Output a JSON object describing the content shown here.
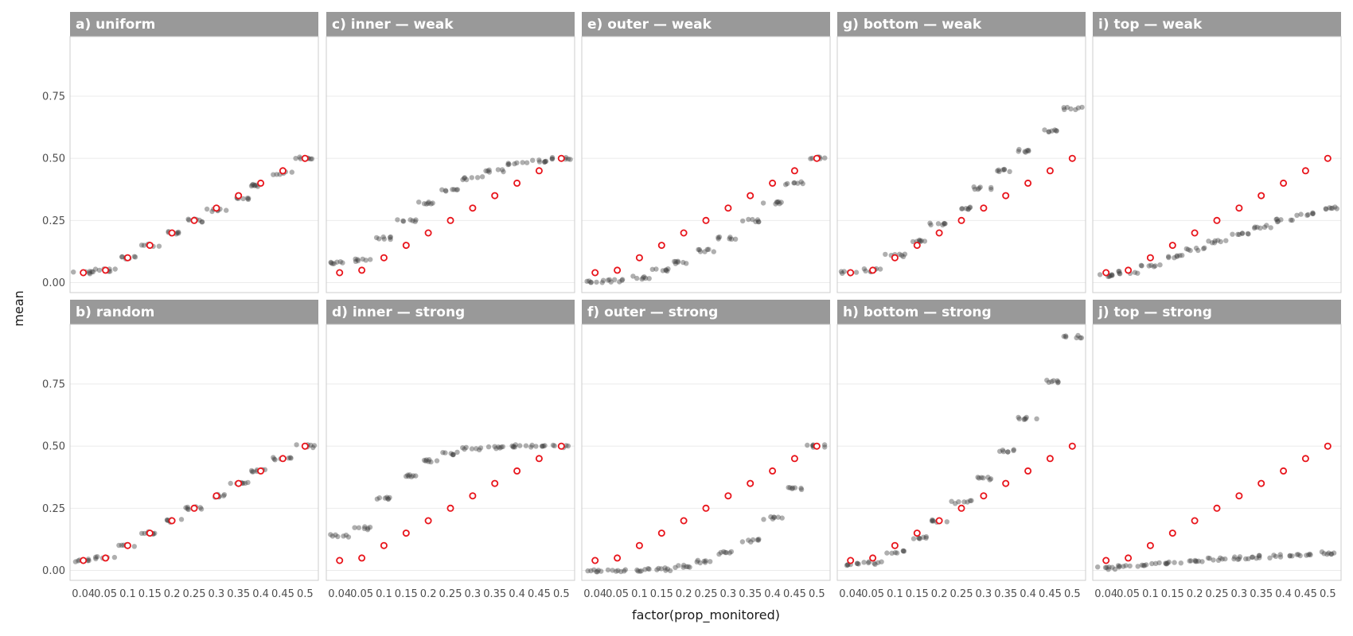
{
  "chart_data": {
    "type": "scatter",
    "xlabel": "factor(prop_monitored)",
    "ylabel": "mean",
    "categories": [
      "0.04",
      "0.05",
      "0.1",
      "0.15",
      "0.2",
      "0.25",
      "0.3",
      "0.35",
      "0.4",
      "0.45",
      "0.5"
    ],
    "expected": [
      0.04,
      0.05,
      0.1,
      0.15,
      0.2,
      0.25,
      0.3,
      0.35,
      0.4,
      0.45,
      0.5
    ],
    "y_ticks": [
      0.0,
      0.25,
      0.5,
      0.75
    ],
    "y_tick_labels": [
      "0.00",
      "0.25",
      "0.50",
      "0.75"
    ],
    "ylim": [
      -0.04,
      0.99
    ],
    "colors": {
      "observed": "#404040",
      "expected": "#e8141b",
      "strip": "#999999",
      "panel_border": "#cccccc",
      "grid": "#ebebeb"
    },
    "panels": [
      {
        "title": "a) uniform",
        "observed": [
          0.04,
          0.05,
          0.1,
          0.15,
          0.2,
          0.25,
          0.29,
          0.34,
          0.39,
          0.44,
          0.5
        ]
      },
      {
        "title": "c) inner — weak",
        "observed": [
          0.08,
          0.09,
          0.18,
          0.25,
          0.32,
          0.37,
          0.42,
          0.45,
          0.48,
          0.49,
          0.5
        ]
      },
      {
        "title": "e) outer — weak",
        "observed": [
          0.005,
          0.008,
          0.02,
          0.05,
          0.08,
          0.13,
          0.18,
          0.25,
          0.32,
          0.4,
          0.5
        ]
      },
      {
        "title": "g) bottom — weak",
        "observed": [
          0.04,
          0.05,
          0.11,
          0.17,
          0.235,
          0.3,
          0.38,
          0.45,
          0.53,
          0.61,
          0.7
        ]
      },
      {
        "title": "i) top — weak",
        "observed": [
          0.03,
          0.04,
          0.07,
          0.105,
          0.135,
          0.165,
          0.195,
          0.225,
          0.25,
          0.275,
          0.3
        ]
      },
      {
        "title": "b) random",
        "observed": [
          0.04,
          0.05,
          0.1,
          0.15,
          0.2,
          0.25,
          0.3,
          0.35,
          0.4,
          0.45,
          0.5
        ]
      },
      {
        "title": "d) inner — strong",
        "observed": [
          0.14,
          0.17,
          0.29,
          0.38,
          0.44,
          0.47,
          0.49,
          0.495,
          0.5,
          0.5,
          0.5
        ]
      },
      {
        "title": "f) outer — strong",
        "observed": [
          0.0,
          0.0,
          0.002,
          0.005,
          0.015,
          0.035,
          0.07,
          0.12,
          0.21,
          0.33,
          0.5
        ]
      },
      {
        "title": "h) bottom — strong",
        "observed": [
          0.025,
          0.03,
          0.075,
          0.13,
          0.2,
          0.275,
          0.37,
          0.48,
          0.61,
          0.76,
          0.94
        ]
      },
      {
        "title": "j) top — strong",
        "observed": [
          0.01,
          0.015,
          0.025,
          0.03,
          0.04,
          0.045,
          0.05,
          0.055,
          0.06,
          0.065,
          0.07
        ]
      }
    ]
  }
}
